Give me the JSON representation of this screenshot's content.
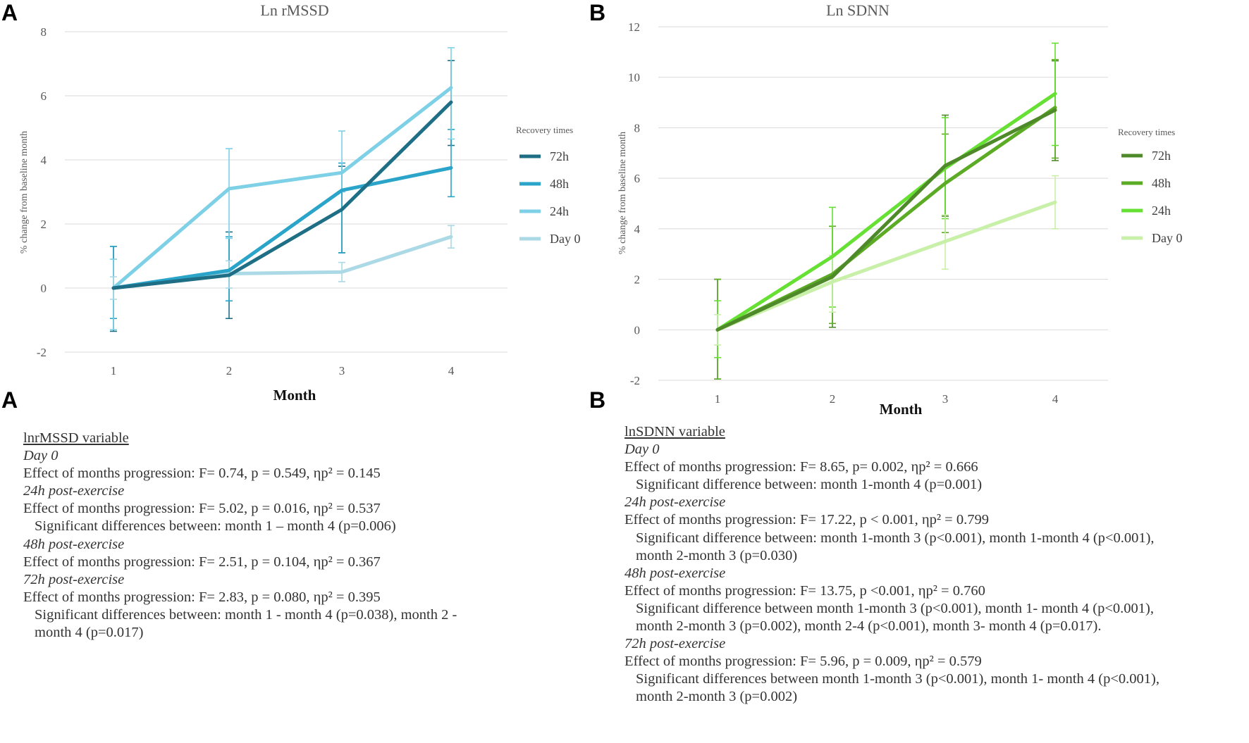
{
  "panel_letters": {
    "top_a": "A",
    "top_b": "B",
    "bottom_a": "A",
    "bottom_b": "B"
  },
  "chart_data": [
    {
      "type": "line",
      "title": "Ln rMSSD",
      "xlabel": "Month",
      "ylabel": "% change from baseline month",
      "categories": [
        "1",
        "2",
        "3",
        "4"
      ],
      "ylim": [
        -2,
        8
      ],
      "yticks": [
        "-2",
        "0",
        "2",
        "4",
        "6",
        "8"
      ],
      "grid": true,
      "legend": {
        "title": "Recovery times",
        "placement": "right"
      },
      "series": [
        {
          "name": "72h",
          "color": "#1e6f86",
          "values": [
            0,
            0.4,
            2.45,
            5.8
          ],
          "error_low": [
            -1.35,
            -0.95,
            1.1,
            4.45
          ],
          "error_high": [
            1.3,
            1.75,
            3.8,
            7.1
          ]
        },
        {
          "name": "48h",
          "color": "#2aa4c8",
          "values": [
            0,
            0.55,
            3.05,
            3.75
          ],
          "error_low": [
            -0.95,
            -0.4,
            1.1,
            2.85
          ],
          "error_high": [
            1.3,
            1.6,
            3.9,
            4.95
          ]
        },
        {
          "name": "24h",
          "color": "#7dd0e6",
          "values": [
            0,
            3.1,
            3.6,
            6.25
          ],
          "error_low": [
            -1.3,
            1.55,
            3.0,
            4.65
          ],
          "error_high": [
            0.9,
            4.35,
            4.9,
            7.5
          ]
        },
        {
          "name": "Day 0",
          "color": "#abd9e5",
          "values": [
            0,
            0.45,
            0.5,
            1.6
          ],
          "error_low": [
            -0.35,
            0.0,
            0.2,
            1.25
          ],
          "error_high": [
            0.35,
            0.85,
            0.8,
            1.95
          ]
        }
      ]
    },
    {
      "type": "line",
      "title": "Ln SDNN",
      "xlabel": "Month",
      "ylabel": "% change from baseline month",
      "categories": [
        "1",
        "2",
        "3",
        "4"
      ],
      "ylim": [
        -2,
        12
      ],
      "yticks": [
        "-2",
        "0",
        "2",
        "4",
        "6",
        "8",
        "10",
        "12"
      ],
      "grid": true,
      "legend": {
        "title": "Recovery times",
        "placement": "right"
      },
      "series": [
        {
          "name": "72h",
          "color": "#4f8a2a",
          "values": [
            0,
            2.1,
            6.5,
            8.7
          ],
          "error_low": [
            -1.95,
            0.1,
            4.5,
            6.7
          ],
          "error_high": [
            2.0,
            4.1,
            8.5,
            10.65
          ]
        },
        {
          "name": "48h",
          "color": "#5cab25",
          "values": [
            0,
            2.2,
            5.8,
            8.8
          ],
          "error_low": [
            -1.95,
            0.25,
            3.85,
            6.8
          ],
          "error_high": [
            2.0,
            4.1,
            7.75,
            10.7
          ]
        },
        {
          "name": "24h",
          "color": "#66e033",
          "values": [
            0,
            2.9,
            6.4,
            9.35
          ],
          "error_low": [
            -1.1,
            0.9,
            4.4,
            7.3
          ],
          "error_high": [
            1.15,
            4.85,
            8.4,
            11.35
          ]
        },
        {
          "name": "Day 0",
          "color": "#c8f0a8",
          "values": [
            0,
            1.9,
            3.5,
            5.05
          ],
          "error_low": [
            -0.6,
            0.7,
            2.4,
            4.0
          ],
          "error_high": [
            0.6,
            2.95,
            4.55,
            6.1
          ]
        }
      ]
    }
  ],
  "stats_text": [
    {
      "lines": [
        {
          "style": "heading",
          "text": "lnrMSSD variable"
        },
        {
          "style": "sub",
          "text": "Day 0"
        },
        {
          "style": "normal",
          "text": "Effect of months progression: F= 0.74, p = 0.549, ηp² = 0.145"
        },
        {
          "style": "sub",
          "text": "24h post-exercise"
        },
        {
          "style": "normal",
          "text": "Effect of months progression: F= 5.02, p = 0.016, ηp² = 0.537"
        },
        {
          "style": "indent",
          "text": "Significant differences between: month 1 – month 4 (p=0.006)"
        },
        {
          "style": "sub",
          "text": "48h post-exercise"
        },
        {
          "style": "normal",
          "text": "Effect of months progression: F= 2.51, p = 0.104, ηp² = 0.367"
        },
        {
          "style": "sub",
          "text": "72h post-exercise"
        },
        {
          "style": "normal",
          "text": "Effect of months progression: F= 2.83, p = 0.080, ηp² = 0.395"
        },
        {
          "style": "indent",
          "text": "Significant differences between: month 1 - month 4 (p=0.038), month 2 -"
        },
        {
          "style": "indent",
          "text": "month 4 (p=0.017)"
        }
      ]
    },
    {
      "lines": [
        {
          "style": "heading",
          "text": "lnSDNN variable"
        },
        {
          "style": "sub",
          "text": "Day 0"
        },
        {
          "style": "normal",
          "text": "Effect of months progression: F= 8.65, p= 0.002, ηp² = 0.666"
        },
        {
          "style": "indent",
          "text": "Significant difference between: month 1-month 4 (p=0.001)"
        },
        {
          "style": "sub",
          "text": "24h post-exercise"
        },
        {
          "style": "normal",
          "text": "Effect of months progression: F= 17.22, p < 0.001, ηp² = 0.799"
        },
        {
          "style": "indent",
          "text": "Significant difference between: month 1-month 3 (p<0.001), month 1-month 4 (p<0.001),"
        },
        {
          "style": "indent",
          "text": "month 2-month 3 (p=0.030)"
        },
        {
          "style": "sub",
          "text": "48h post-exercise"
        },
        {
          "style": "normal",
          "text": "Effect of months progression: F= 13.75,  p <0.001, ηp² = 0.760"
        },
        {
          "style": "indent",
          "text": "Significant difference between month 1-month  3 (p<0.001), month 1- month 4 (p<0.001),"
        },
        {
          "style": "indent",
          "text": "month 2-month 3 (p=0.002), month 2-4 (p<0.001), month 3- month 4 (p=0.017)."
        },
        {
          "style": "sub",
          "text": "72h post-exercise"
        },
        {
          "style": "normal",
          "text": "Effect of months progression: F= 5.96, p = 0.009, ηp² = 0.579"
        },
        {
          "style": "indent",
          "text": "Significant differences between month 1-month  3 (p<0.001), month 1- month 4 (p<0.001),"
        },
        {
          "style": "indent",
          "text": "month 2-month 3 (p=0.002)"
        }
      ]
    }
  ]
}
